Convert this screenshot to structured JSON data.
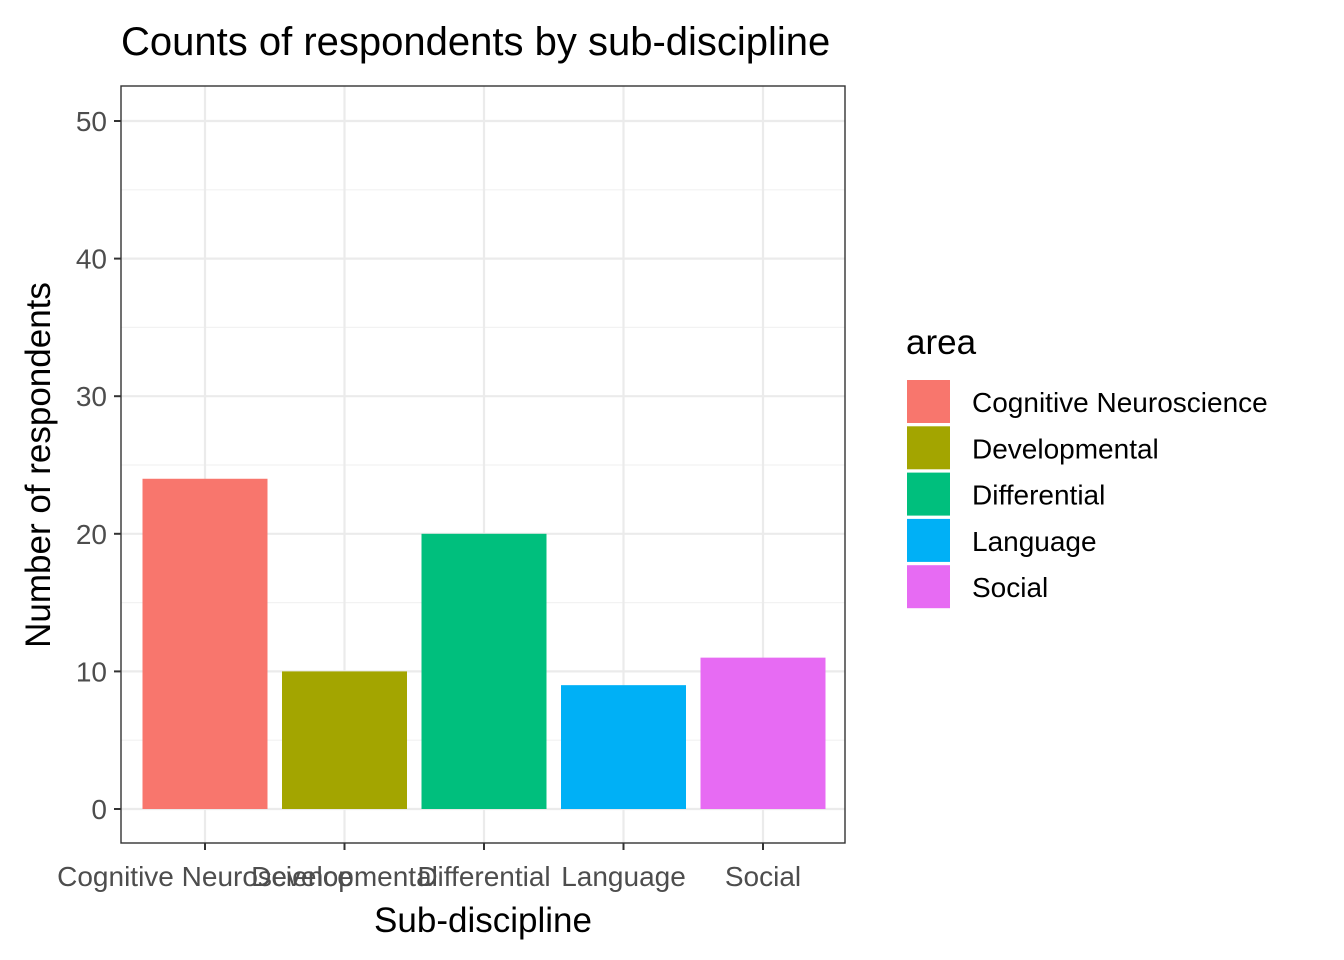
{
  "chart_data": {
    "type": "bar",
    "title": "Counts of respondents by sub-discipline",
    "xlabel": "Sub-discipline",
    "ylabel": "Number of respondents",
    "categories": [
      "Cognitive Neuroscience",
      "Developmental",
      "Differential",
      "Language",
      "Social"
    ],
    "values": [
      24,
      10,
      20,
      9,
      11
    ],
    "colors": [
      "#F8766D",
      "#A3A500",
      "#00BF7D",
      "#00B0F6",
      "#E76BF3"
    ],
    "ylim": [
      0,
      50
    ],
    "yticks": [
      0,
      10,
      20,
      30,
      40,
      50
    ],
    "grid": true,
    "legend": {
      "title": "area",
      "position": "right",
      "entries": [
        "Cognitive Neuroscience",
        "Developmental",
        "Differential",
        "Language",
        "Social"
      ]
    }
  }
}
